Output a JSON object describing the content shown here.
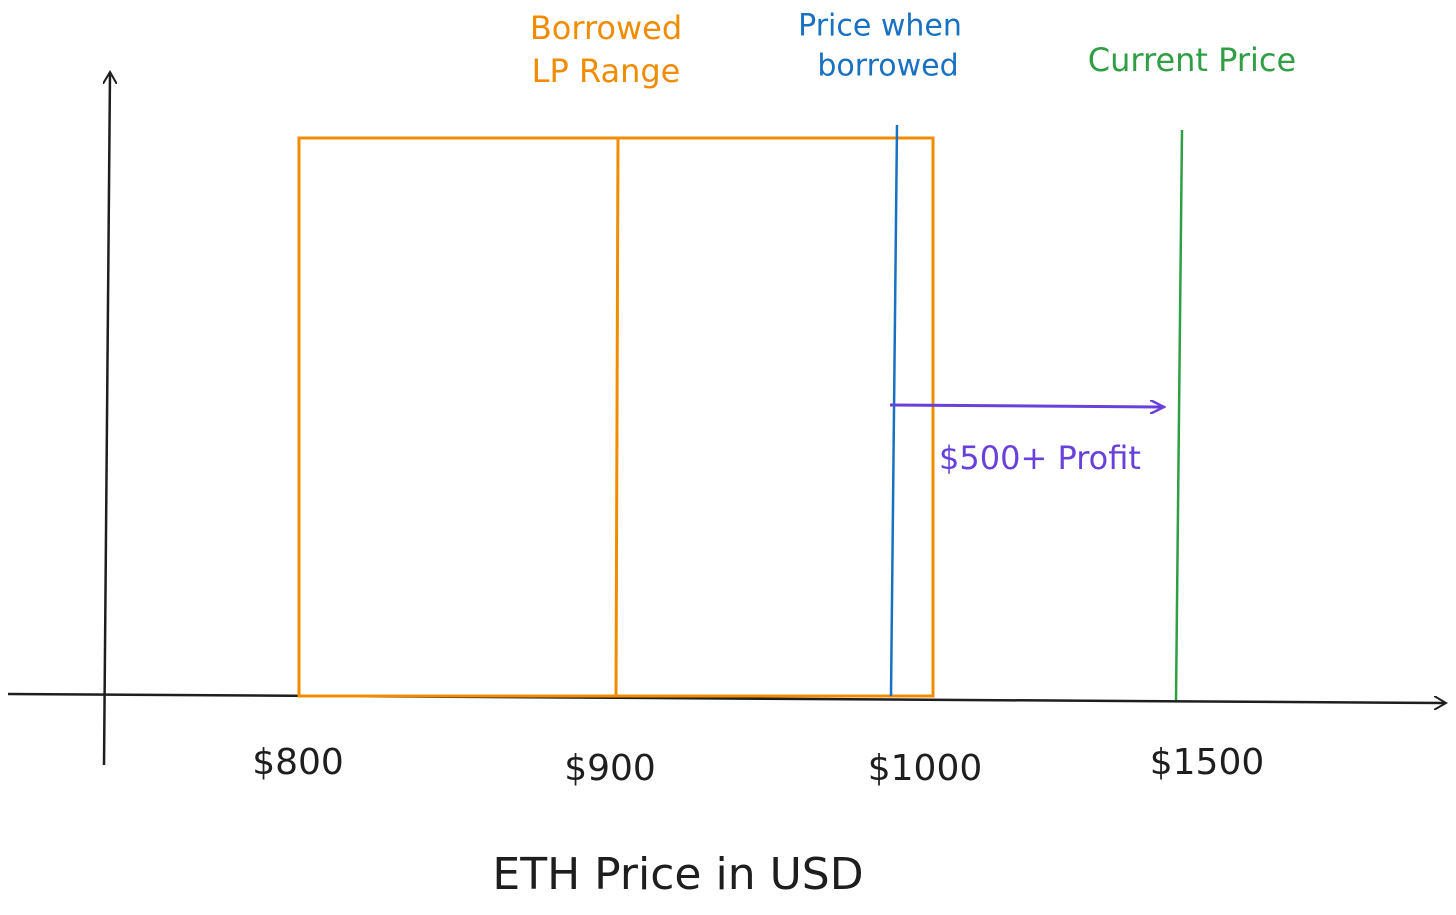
{
  "annotations": {
    "lp_range": [
      "Borrowed",
      "LP Range"
    ],
    "price_borrowed": [
      "Price when",
      "borrowed"
    ],
    "current_price": "Current Price",
    "profit": "$500+ Profit"
  },
  "ticks": [
    "$800",
    "$900",
    "$1000",
    "$1500"
  ],
  "axis_label": "ETH Price in USD"
}
